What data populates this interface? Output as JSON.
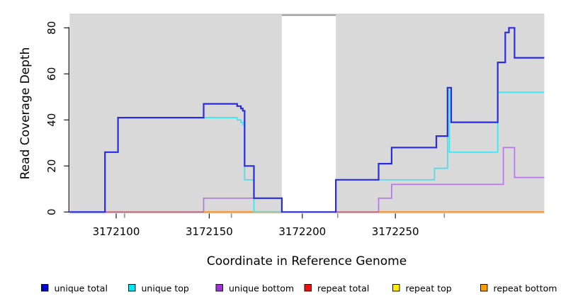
{
  "figure": {
    "background": "#ffffff",
    "panel_background": "#d9d9d9",
    "panel_top_edge": "#c6c6c6",
    "gap_fill": "#ffffff",
    "gap_top_edge": "#8a8a8a",
    "axis_color": "#1a1a1a",
    "minor_tick_color": "#8c8c8c"
  },
  "chart_data": {
    "type": "line",
    "subtype": "step-coverage",
    "title": "",
    "xlabel": "Coordinate in Reference Genome",
    "ylabel": "Read Coverage Depth",
    "xlim": [
      3172075,
      3172330
    ],
    "ylim": [
      0,
      86
    ],
    "grid": false,
    "legend_position": "bottom",
    "x_ticks": [
      {
        "value": 3172100,
        "label": "3172100"
      },
      {
        "value": 3172150,
        "label": "3172150"
      },
      {
        "value": 3172200,
        "label": "3172200"
      },
      {
        "value": 3172250,
        "label": "3172250"
      }
    ],
    "minor_tick_coords": [
      3172104.5,
      3172161.9,
      3172219.0,
      3172276.3
    ],
    "y_ticks": [
      {
        "value": 0,
        "label": "0"
      },
      {
        "value": 20,
        "label": "20"
      },
      {
        "value": 40,
        "label": "40"
      },
      {
        "value": 60,
        "label": "60"
      },
      {
        "value": 80,
        "label": "80"
      }
    ],
    "covered_regions": [
      [
        3172075,
        3172189
      ],
      [
        3172218,
        3172330
      ]
    ],
    "gap_region": [
      3172189,
      3172218
    ],
    "series": [
      {
        "name": "unique total",
        "color": "#2b2be0",
        "swatch": "#0000d0",
        "lw": 2.2,
        "z": 6,
        "segments": [
          {
            "steps": [
              [
                3172075,
                0
              ],
              [
                3172094,
                26
              ],
              [
                3172101,
                41
              ],
              [
                3172147,
                47
              ],
              [
                3172165,
                46
              ],
              [
                3172167,
                45
              ],
              [
                3172168,
                44
              ],
              [
                3172169,
                20
              ],
              [
                3172174,
                6
              ],
              [
                3172189,
                0
              ],
              [
                3172218,
                14
              ],
              [
                3172241,
                21
              ],
              [
                3172248,
                28
              ],
              [
                3172272,
                33
              ],
              [
                3172278,
                54
              ],
              [
                3172280,
                39
              ],
              [
                3172305,
                65
              ],
              [
                3172309,
                78
              ],
              [
                3172311,
                80
              ],
              [
                3172314,
                67
              ]
            ],
            "end": 3172330
          }
        ]
      },
      {
        "name": "unique top",
        "color": "#3fe2f0",
        "swatch": "#00e5f0",
        "lw": 1.7,
        "z": 5,
        "segments": [
          {
            "steps": [
              [
                3172075,
                0
              ],
              [
                3172094,
                26
              ],
              [
                3172101,
                41
              ],
              [
                3172165,
                40
              ],
              [
                3172167,
                39
              ],
              [
                3172168,
                38
              ],
              [
                3172169,
                14
              ],
              [
                3172174,
                0
              ],
              [
                3172218,
                14
              ],
              [
                3172271,
                19
              ],
              [
                3172278,
                53
              ],
              [
                3172279,
                26
              ],
              [
                3172305,
                52
              ]
            ],
            "end": 3172330
          }
        ]
      },
      {
        "name": "unique bottom",
        "color": "#b277e2",
        "swatch": "#a232d6",
        "lw": 1.7,
        "z": 1,
        "segments": [
          {
            "steps": [
              [
                3172075,
                0
              ],
              [
                3172147,
                6
              ],
              [
                3172189,
                0
              ],
              [
                3172241,
                6
              ],
              [
                3172248,
                12
              ],
              [
                3172308,
                28
              ],
              [
                3172314,
                15
              ]
            ],
            "end": 3172330
          }
        ]
      },
      {
        "name": "repeat total",
        "color": "#d84b62",
        "swatch": "#ee1111",
        "lw": 1.7,
        "z": 2,
        "segments": [
          {
            "steps": [
              [
                3172094,
                0
              ]
            ],
            "end": 3172189
          },
          {
            "steps": [
              [
                3172218,
                0
              ]
            ],
            "end": 3172241
          }
        ]
      },
      {
        "name": "repeat top",
        "color": "#ffee00",
        "swatch": "#ffee00",
        "lw": 1.5,
        "z": 3,
        "segments": [
          {
            "steps": [
              [
                3172147,
                0
              ]
            ],
            "end": 3172189
          },
          {
            "steps": [
              [
                3172241,
                0
              ]
            ],
            "end": 3172330
          }
        ]
      },
      {
        "name": "repeat bottom",
        "color": "#ff9415",
        "swatch": "#ff9c00",
        "lw": 2.0,
        "z": 4,
        "segments": [
          {
            "steps": [
              [
                3172147,
                0
              ]
            ],
            "end": 3172189
          },
          {
            "steps": [
              [
                3172241,
                0
              ]
            ],
            "end": 3172330
          }
        ]
      }
    ]
  }
}
